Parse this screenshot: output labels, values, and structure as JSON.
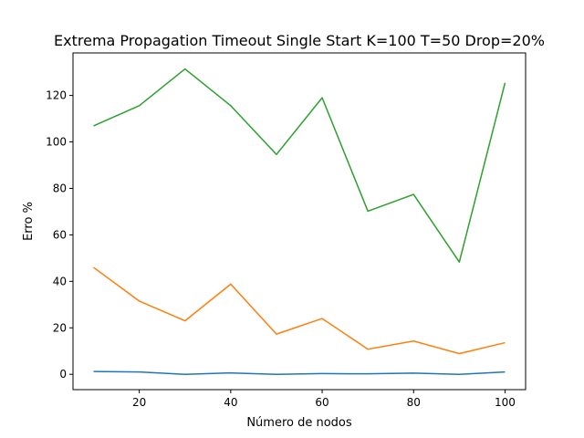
{
  "chart_data": {
    "type": "line",
    "title": "Extrema Propagation Timeout Single Start K=100 T=50 Drop=20%",
    "xlabel": "Número de nodos",
    "ylabel": "Erro %",
    "x": [
      10,
      20,
      30,
      40,
      50,
      60,
      70,
      80,
      90,
      100
    ],
    "xlim": [
      5.5,
      104.5
    ],
    "ylim": [
      -6.6,
      138.3
    ],
    "xticks": [
      20,
      40,
      60,
      80,
      100
    ],
    "yticks": [
      0,
      20,
      40,
      60,
      80,
      100,
      120
    ],
    "grid": false,
    "legend": "none",
    "series": [
      {
        "color": "#1f77b4",
        "values": [
          1.2,
          1.0,
          0.0,
          0.6,
          0.0,
          0.3,
          0.2,
          0.5,
          0.0,
          1.0
        ]
      },
      {
        "color": "#ff7f0e",
        "values": [
          46.0,
          31.5,
          23.0,
          38.8,
          17.3,
          24.0,
          10.8,
          14.3,
          8.9,
          13.6
        ]
      },
      {
        "color": "#2ca02c",
        "values": [
          106.9,
          115.6,
          131.4,
          115.6,
          94.6,
          119.0,
          70.2,
          77.4,
          48.3,
          125.4
        ]
      }
    ]
  }
}
